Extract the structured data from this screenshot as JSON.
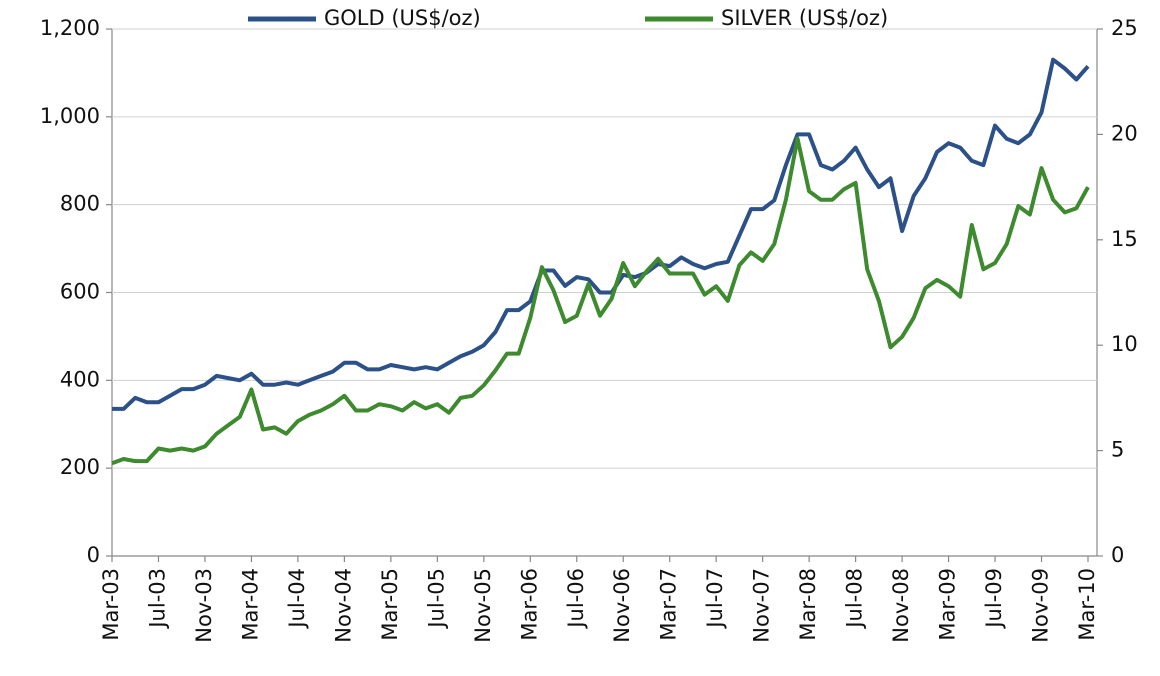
{
  "chart_data": {
    "type": "line",
    "categories": [
      "Mar-03",
      null,
      null,
      null,
      "Jul-03",
      null,
      null,
      null,
      "Nov-03",
      null,
      null,
      null,
      "Mar-04",
      null,
      null,
      null,
      "Jul-04",
      null,
      null,
      null,
      "Nov-04",
      null,
      null,
      null,
      "Mar-05",
      null,
      null,
      null,
      "Jul-05",
      null,
      null,
      null,
      "Nov-05",
      null,
      null,
      null,
      "Mar-06",
      null,
      null,
      null,
      "Jul-06",
      null,
      null,
      null,
      "Nov-06",
      null,
      null,
      null,
      "Mar-07",
      null,
      null,
      null,
      "Jul-07",
      null,
      null,
      null,
      "Nov-07",
      null,
      null,
      null,
      "Mar-08",
      null,
      null,
      null,
      "Jul-08",
      null,
      null,
      null,
      "Nov-08",
      null,
      null,
      null,
      "Mar-09",
      null,
      null,
      null,
      "Jul-09",
      null,
      null,
      null,
      "Nov-09",
      null,
      null,
      null,
      "Mar-10"
    ],
    "series": [
      {
        "name": "GOLD (US$/oz)",
        "color": "#2b5188",
        "axis": "y",
        "values": [
          335,
          335,
          360,
          350,
          350,
          365,
          380,
          380,
          390,
          410,
          405,
          400,
          415,
          390,
          390,
          395,
          390,
          400,
          410,
          420,
          440,
          440,
          425,
          425,
          435,
          430,
          425,
          430,
          425,
          440,
          455,
          465,
          480,
          510,
          560,
          560,
          580,
          650,
          650,
          615,
          635,
          630,
          600,
          600,
          640,
          635,
          645,
          665,
          660,
          680,
          665,
          655,
          665,
          670,
          730,
          790,
          790,
          810,
          890,
          960,
          960,
          890,
          880,
          900,
          930,
          880,
          840,
          860,
          740,
          820,
          860,
          920,
          940,
          930,
          900,
          890,
          980,
          950,
          940,
          960,
          1010,
          1130,
          1110,
          1085,
          1115
        ]
      },
      {
        "name": "SILVER (US$/oz)",
        "color": "#3e8a2e",
        "axis": "y2",
        "values": [
          4.4,
          4.6,
          4.5,
          4.5,
          5.1,
          5.0,
          5.1,
          5.0,
          5.2,
          5.8,
          6.2,
          6.6,
          7.9,
          6.0,
          6.1,
          5.8,
          6.4,
          6.7,
          6.9,
          7.2,
          7.6,
          6.9,
          6.9,
          7.2,
          7.1,
          6.9,
          7.3,
          7.0,
          7.2,
          6.8,
          7.5,
          7.6,
          8.1,
          8.8,
          9.6,
          9.6,
          11.3,
          13.7,
          12.6,
          11.1,
          11.4,
          12.9,
          11.4,
          12.2,
          13.9,
          12.8,
          13.5,
          14.1,
          13.4,
          13.4,
          13.4,
          12.4,
          12.8,
          12.1,
          13.8,
          14.4,
          14.0,
          14.8,
          16.9,
          19.8,
          17.3,
          16.9,
          16.9,
          17.4,
          17.7,
          13.6,
          12.1,
          9.9,
          10.4,
          11.3,
          12.7,
          13.1,
          12.8,
          12.3,
          15.7,
          13.6,
          13.9,
          14.8,
          16.6,
          16.2,
          18.4,
          16.9,
          16.3,
          16.5,
          17.5
        ]
      }
    ],
    "ylim": [
      0,
      1200
    ],
    "yticks": [
      0,
      200,
      400,
      600,
      800,
      {
        "value": 1000,
        "label": "1,000"
      },
      {
        "value": 1200,
        "label": "1,200"
      }
    ],
    "y2lim": [
      0,
      25
    ],
    "y2ticks": [
      0,
      5,
      10,
      15,
      20,
      25
    ],
    "grid": true,
    "legend": "top"
  }
}
